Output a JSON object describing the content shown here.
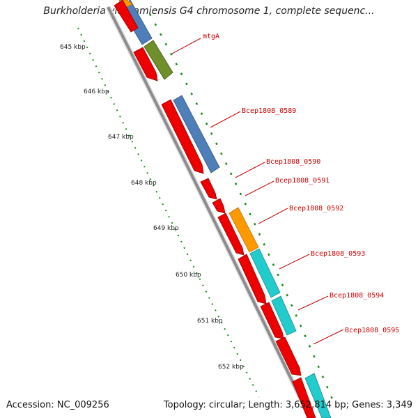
{
  "title": "Burkholderia vietnamiensis G4 chromosome 1, complete sequenc...",
  "footer": {
    "accession": "Accession: NC_009256",
    "topology": "Topology: circular; Length: 3,652,814 bp; Genes: 3,349"
  },
  "kbp_labels": [
    "645 kbp",
    "646 kbp",
    "647 kbp",
    "648 kbp",
    "649 kbp",
    "650 kbp",
    "651 kbp",
    "652 kbp"
  ],
  "gene_labels": [
    "mtgA",
    "Bcep1808_0589",
    "Bcep1808_0590",
    "Bcep1808_0591",
    "Bcep1808_0592",
    "Bcep1808_0593",
    "Bcep1808_0594",
    "Bcep1808_0595"
  ],
  "colors": {
    "cds": "#ee0000",
    "backbone": "#8c8c8c",
    "tick": "#1a8a1a",
    "label": "#cc0000",
    "steelblue": "#4f7fb8",
    "olive": "#6f8f2a",
    "orange": "#ff9900",
    "cyan": "#22cccc"
  }
}
